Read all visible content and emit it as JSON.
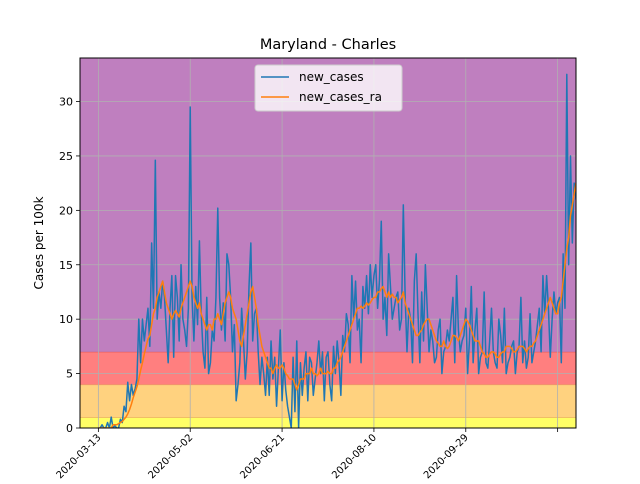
{
  "chart_data": {
    "type": "line",
    "title": "Maryland - Charles",
    "xlabel": "",
    "ylabel": "Cases per 100k",
    "x_tick_labels": [
      "2020-03-13",
      "2020-05-02",
      "2020-06-21",
      "2020-08-10",
      "2020-09-29",
      ""
    ],
    "y_ticks": [
      0,
      5,
      10,
      15,
      20,
      25,
      30
    ],
    "xlim": [
      "2020-03-03",
      "2020-11-28"
    ],
    "ylim": [
      0,
      34
    ],
    "grid": true,
    "legend_position": "top-center",
    "risk_bands": [
      {
        "from": 0,
        "to": 1,
        "color": "#ffff66"
      },
      {
        "from": 1,
        "to": 4,
        "color": "#ffd27f"
      },
      {
        "from": 4,
        "to": 7,
        "color": "#ff7f7f"
      },
      {
        "from": 7,
        "to": 34,
        "color": "#bf7fbf"
      }
    ],
    "series": [
      {
        "name": "new_cases",
        "color": "#1f77b4",
        "start_date": "2020-03-13",
        "values": [
          0.0,
          0.0,
          0.3,
          0.0,
          0.0,
          0.5,
          0.0,
          1.0,
          0.0,
          0.2,
          0.0,
          0.0,
          0.8,
          0.5,
          2.0,
          1.5,
          4.2,
          2.5,
          4.0,
          3.0,
          3.6,
          4.5,
          10.0,
          6.0,
          10.0,
          8.0,
          9.5,
          11.0,
          7.5,
          17.0,
          11.0,
          24.6,
          10.0,
          12.5,
          11.0,
          13.5,
          12.0,
          9.0,
          6.0,
          11.0,
          14.0,
          6.5,
          14.0,
          12.0,
          8.0,
          15.0,
          10.0,
          9.0,
          7.5,
          11.0,
          29.5,
          12.0,
          8.0,
          13.0,
          9.5,
          17.2,
          10.5,
          7.0,
          5.5,
          12.0,
          5.0,
          6.0,
          9.0,
          8.0,
          12.0,
          20.2,
          12.0,
          9.0,
          11.5,
          8.0,
          16.0,
          15.0,
          12.0,
          7.0,
          9.5,
          2.5,
          4.0,
          6.0,
          11.0,
          8.0,
          4.5,
          7.0,
          13.0,
          17.0,
          8.0,
          10.5,
          11.0,
          7.0,
          4.0,
          6.5,
          5.0,
          3.0,
          6.5,
          3.0,
          8.0,
          4.5,
          6.5,
          2.0,
          5.5,
          9.0,
          2.5,
          6.0,
          3.5,
          2.0,
          1.0,
          0.0,
          6.5,
          1.5,
          8.0,
          0.0,
          6.0,
          3.0,
          5.5,
          7.0,
          2.5,
          6.5,
          6.0,
          3.0,
          4.5,
          6.0,
          8.0,
          5.0,
          7.0,
          2.5,
          6.5,
          7.0,
          4.0,
          2.5,
          7.5,
          5.0,
          8.0,
          6.0,
          3.0,
          8.5,
          7.0,
          10.5,
          9.5,
          6.0,
          14.0,
          10.0,
          13.5,
          9.0,
          10.0,
          6.0,
          13.0,
          11.0,
          14.0,
          10.5,
          15.0,
          12.0,
          14.0,
          15.0,
          11.0,
          13.5,
          19.0,
          10.0,
          12.0,
          8.5,
          16.0,
          13.0,
          10.0,
          11.0,
          12.0,
          12.5,
          9.0,
          10.0,
          20.5,
          12.0,
          7.0,
          11.0,
          10.0,
          6.0,
          13.5,
          16.0,
          10.5,
          6.0,
          12.5,
          8.0,
          15.0,
          11.0,
          7.0,
          9.0,
          8.0,
          6.0,
          6.5,
          9.0,
          10.0,
          5.0,
          7.0,
          7.5,
          9.0,
          8.0,
          10.0,
          12.0,
          6.0,
          14.0,
          9.0,
          7.0,
          8.0,
          8.5,
          11.0,
          5.0,
          8.0,
          13.0,
          6.0,
          9.0,
          11.0,
          5.0,
          6.5,
          7.0,
          12.5,
          6.0,
          5.5,
          8.0,
          11.0,
          7.0,
          6.0,
          5.5,
          10.0,
          8.5,
          6.0,
          11.0,
          5.0,
          6.0,
          6.5,
          7.5,
          8.0,
          5.0,
          7.0,
          7.5,
          12.0,
          6.0,
          8.0,
          5.5,
          6.5,
          10.5,
          6.0,
          7.0,
          8.0,
          9.5,
          11.0,
          7.0,
          14.0,
          10.5,
          14.0,
          11.0,
          6.5,
          10.0,
          12.5,
          10.5,
          11.5,
          12.0,
          6.0,
          16.0,
          11.0,
          32.5,
          15.0,
          25.0,
          17.0,
          22.5,
          21.0,
          22.7
        ]
      },
      {
        "name": "new_cases_ra",
        "color": "#ff7f0e",
        "start_date": "2020-03-13",
        "values": [
          0.0,
          0.0,
          0.0,
          0.0,
          0.0,
          0.0,
          0.0,
          0.0,
          0.3,
          0.3,
          0.3,
          0.4,
          0.5,
          0.6,
          0.8,
          1.0,
          1.3,
          1.7,
          2.2,
          2.8,
          3.3,
          3.8,
          4.5,
          5.3,
          6.0,
          6.8,
          7.5,
          8.2,
          8.5,
          9.5,
          10.5,
          11.0,
          12.0,
          12.5,
          13.0,
          13.5,
          12.5,
          11.5,
          11.0,
          10.5,
          10.0,
          10.5,
          10.8,
          10.5,
          10.2,
          11.0,
          11.5,
          12.0,
          12.5,
          13.0,
          13.5,
          13.0,
          12.0,
          11.5,
          11.0,
          11.5,
          10.5,
          10.0,
          9.5,
          9.0,
          9.5,
          9.5,
          9.0,
          10.0,
          10.0,
          10.5,
          10.0,
          9.5,
          10.5,
          11.5,
          12.0,
          12.5,
          12.0,
          11.0,
          10.5,
          10.0,
          9.0,
          8.0,
          7.5,
          8.5,
          9.5,
          10.5,
          11.5,
          12.5,
          13.0,
          12.0,
          11.0,
          9.5,
          8.5,
          7.5,
          7.0,
          6.5,
          6.0,
          5.5,
          5.5,
          5.0,
          5.5,
          5.8,
          5.5,
          5.5,
          5.8,
          5.5,
          5.0,
          4.8,
          4.5,
          4.5,
          4.5,
          4.0,
          3.5,
          4.0,
          4.5,
          4.5,
          4.5,
          5.0,
          5.0,
          5.0,
          5.5,
          5.0,
          5.0,
          4.8,
          5.0,
          5.5,
          5.0,
          5.0,
          5.0,
          5.2,
          5.0,
          5.0,
          5.5,
          5.5,
          6.0,
          6.2,
          6.5,
          7.0,
          7.5,
          8.0,
          8.5,
          9.0,
          9.5,
          10.0,
          10.5,
          11.0,
          11.0,
          11.2,
          11.0,
          11.2,
          11.5,
          11.3,
          11.5,
          11.8,
          12.0,
          12.0,
          12.5,
          12.5,
          12.8,
          13.0,
          12.5,
          12.0,
          12.5,
          12.0,
          12.3,
          12.0,
          12.0,
          11.5,
          11.8,
          12.0,
          12.5,
          11.5,
          11.0,
          10.5,
          10.0,
          9.5,
          9.0,
          8.5,
          8.5,
          8.8,
          9.0,
          9.5,
          9.8,
          10.0,
          10.0,
          9.5,
          9.0,
          8.5,
          8.0,
          7.8,
          7.5,
          7.5,
          8.0,
          7.5,
          7.3,
          7.5,
          8.0,
          8.5,
          8.5,
          8.3,
          8.0,
          8.5,
          9.0,
          9.5,
          10.0,
          9.8,
          9.5,
          9.0,
          8.5,
          8.0,
          8.0,
          8.0,
          7.5,
          7.0,
          6.8,
          6.5,
          6.5,
          6.8,
          7.0,
          7.0,
          6.8,
          6.5,
          6.5,
          6.8,
          7.0,
          7.0,
          7.5,
          7.5,
          7.5,
          7.3,
          7.0,
          7.0,
          7.2,
          7.5,
          7.5,
          7.5,
          7.3,
          7.0,
          7.3,
          7.5,
          7.5,
          7.8,
          8.0,
          8.5,
          9.0,
          9.5,
          10.0,
          10.5,
          11.0,
          11.5,
          12.0,
          11.5,
          11.0,
          10.5,
          10.5,
          11.5,
          12.0,
          13.5,
          15.0,
          16.5,
          17.5,
          19.5,
          20.5,
          21.5,
          22.5
        ]
      }
    ]
  }
}
